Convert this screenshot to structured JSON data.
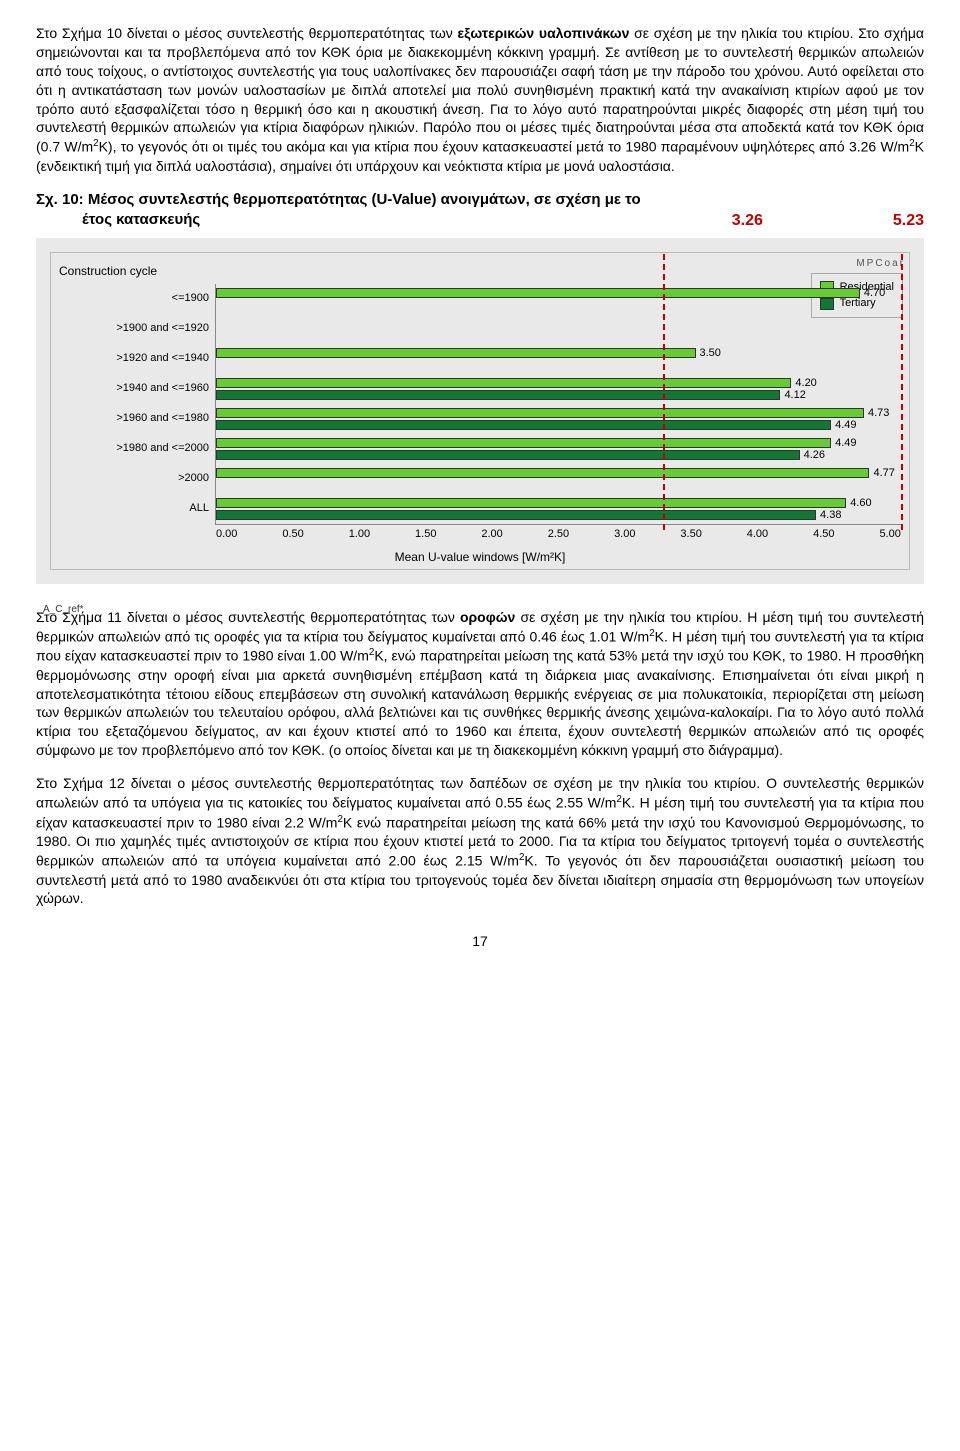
{
  "para1": {
    "p1a": "Στο Σχήμα 10 δίνεται ο μέσος συντελεστής θερμοπερατότητας των ",
    "p1b": "εξωτερικών υαλοπινάκων",
    "p1c": " σε σχέση με την ηλικία του κτιρίου. Στο σχήμα σημειώνονται και τα προβλεπόμενα από τον ΚΘΚ όρια με διακεκομμένη κόκκινη γραμμή. Σε αντίθεση με το συντελεστή θερμικών απωλειών από τους τοίχους, ο αντίστοιχος συντελεστής για τους υαλοπίνακες δεν παρουσιάζει σαφή τάση με την πάροδο του χρόνου. Αυτό οφείλεται στο ότι η αντικατάσταση των μονών υαλοστασίων με διπλά αποτελεί μια πολύ συνηθισμένη πρακτική κατά την ανακαίνιση κτιρίων αφού με τον τρόπο αυτό εξασφαλίζεται τόσο η θερμική όσο και η ακουστική άνεση. Για το λόγο αυτό παρατηρούνται μικρές διαφορές στη μέση τιμή του συντελεστή θερμικών απωλειών για κτίρια διαφόρων ηλικιών. Παρόλο που οι μέσες τιμές διατηρούνται μέσα στα αποδεκτά κατά τον ΚΘΚ όρια (0.7 W/m",
    "p1d": "K), το γεγονός ότι οι τιμές του ακόμα και για κτίρια που έχουν κατασκευαστεί μετά το 1980 παραμένουν υψηλότερες από 3.26 W/m",
    "p1e": "K (ενδεικτική τιμή για διπλά υαλοστάσια), σημαίνει ότι υπάρχουν και νεόκτιστα κτίρια με μονά υαλοστάσια."
  },
  "chart": {
    "title_l1": "Σχ. 10: Μέσος συντελεστής θερμοπερατότητας (U-Value) ανοιγμάτων, σε σχέση με το",
    "title_l2": "έτος κατασκευής",
    "ann1": "3.26",
    "ann2": "5.23",
    "cc": "Construction cycle",
    "mpc": "MPCoar",
    "xcaption": "Mean U-value windows [W/m²K]",
    "footnote": "A_C_ref*",
    "xmin": 0.0,
    "xmax": 5.0,
    "xticks": [
      "0.00",
      "0.50",
      "1.00",
      "1.50",
      "2.00",
      "2.50",
      "3.00",
      "3.50",
      "4.00",
      "4.50",
      "5.00"
    ],
    "vlines": [
      3.26,
      5.0
    ],
    "legend": {
      "res": "Residential",
      "ter": "Tertiary"
    },
    "colors": {
      "res": "#66cc33",
      "ter": "#117733",
      "line": "#c00000",
      "bg": "#e9e9e9"
    },
    "rows": [
      {
        "label": "<=1900",
        "res": 4.7,
        "ter": null,
        "res_txt": "4.70"
      },
      {
        "label": ">1900 and <=1920",
        "res": null,
        "ter": null
      },
      {
        "label": ">1920 and <=1940",
        "res": 3.5,
        "ter": null,
        "res_txt": "3.50"
      },
      {
        "label": ">1940 and <=1960",
        "res": 4.2,
        "ter": 4.12,
        "res_txt": "4.20",
        "ter_txt": "4.12"
      },
      {
        "label": ">1960 and <=1980",
        "res": 4.73,
        "ter": 4.49,
        "res_txt": "4.73",
        "ter_txt": "4.49"
      },
      {
        "label": ">1980 and <=2000",
        "res": 4.49,
        "ter": 4.26,
        "res_txt": "4.49",
        "ter_txt": "4.26"
      },
      {
        "label": ">2000",
        "res": 4.77,
        "ter": null,
        "res_txt": "4.77"
      },
      {
        "label": "ALL",
        "res": 4.6,
        "ter": 4.38,
        "res_txt": "4.60",
        "ter_txt": "4.38"
      }
    ]
  },
  "para2": {
    "a": "Στο Σχήμα 11 δίνεται ο μέσος συντελεστής θερμοπερατότητας των ",
    "b": "οροφών",
    "c": " σε σχέση με την ηλικία του κτιρίου. Η μέση τιμή του συντελεστή θερμικών απωλειών από τις οροφές για τα κτίρια του δείγματος κυμαίνεται από 0.46 έως 1.01 W/m",
    "d": "K. Η μέση τιμή του συντελεστή για τα κτίρια που είχαν κατασκευαστεί πριν το 1980 είναι 1.00 W/m",
    "e": "K, ενώ παρατηρείται μείωση της κατά 53% μετά την ισχύ του ΚΘΚ, το 1980. Η προσθήκη θερμομόνωσης στην οροφή είναι μια αρκετά συνηθισμένη επέμβαση κατά τη διάρκεια μιας ανακαίνισης. Επισημαίνεται ότι είναι μικρή η αποτελεσματικότητα τέτοιου είδους επεμβάσεων στη συνολική κατανάλωση θερμικής ενέργειας σε μια πολυκατοικία, περιορίζεται στη μείωση των θερμικών απωλειών του τελευταίου ορόφου, αλλά βελτιώνει και τις συνθήκες θερμικής άνεσης χειμώνα-καλοκαίρι. Για το λόγο αυτό πολλά κτίρια του εξεταζόμενου δείγματος, αν και έχουν κτιστεί από το 1960 και έπειτα, έχουν συντελεστή θερμικών απωλειών από τις οροφές σύμφωνο με τον προβλεπόμενο από τον ΚΘΚ. (ο οποίος δίνεται και με τη διακεκομμένη κόκκινη γραμμή στο διάγραμμα)."
  },
  "para3": {
    "a": "Στο Σχήμα 12 δίνεται ο μέσος συντελεστής θερμοπερατότητας των δαπέδων σε σχέση με την ηλικία του κτιρίου. Ο συντελεστής θερμικών απωλειών από τα υπόγεια για τις κατοικίες του δείγματος κυμαίνεται από 0.55 έως 2.55 W/m",
    "b": "K. Η μέση τιμή του συντελεστή για τα κτίρια που είχαν κατασκευαστεί πριν το 1980 είναι 2.2 W/m",
    "c": "K ενώ παρατηρείται μείωση της κατά 66% μετά την ισχύ του Κανονισμού Θερμομόνωσης, το 1980. Οι πιο χαμηλές τιμές αντιστοιχούν σε κτίρια που έχουν κτιστεί μετά το 2000. Για τα κτίρια του δείγματος τριτογενή τομέα ο συντελεστής θερμικών απωλειών από τα υπόγεια κυμαίνεται από 2.00 έως 2.15 W/m",
    "d": "K. Το γεγονός ότι δεν παρουσιάζεται ουσιαστική μείωση του συντελεστή μετά από το 1980 αναδεικνύει ότι στα κτίρια του τριτογενούς τομέα δεν δίνεται ιδιαίτερη σημασία στη θερμομόνωση των υπογείων χώρων."
  },
  "page": "17"
}
